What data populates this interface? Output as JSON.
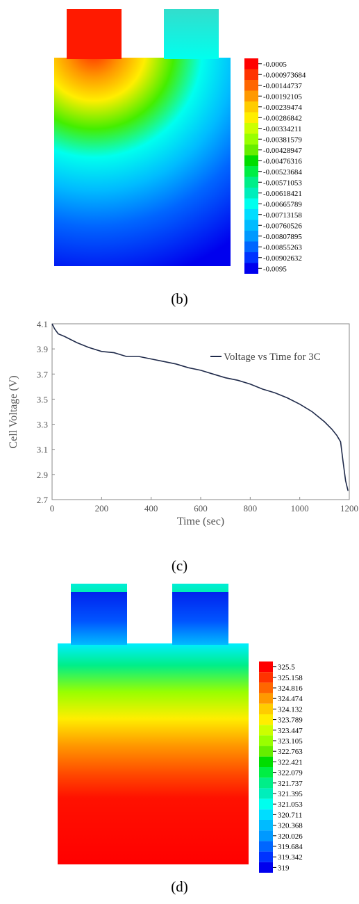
{
  "captions": {
    "b": "(b)",
    "c": "(c)",
    "d": "(d)"
  },
  "contour_b": {
    "legend_labels": [
      "-0.0005",
      "-0.000973684",
      "-0.00144737",
      "-0.00192105",
      "-0.00239474",
      "-0.00286842",
      "-0.00334211",
      "-0.00381579",
      "-0.00428947",
      "-0.00476316",
      "-0.00523684",
      "-0.00571053",
      "-0.00618421",
      "-0.00665789",
      "-0.00713158",
      "-0.00760526",
      "-0.00807895",
      "-0.00855263",
      "-0.00902632",
      "-0.0095"
    ],
    "legend_colors": [
      "#ff0000",
      "#ff3300",
      "#ff6600",
      "#ff9900",
      "#ffcc00",
      "#ffee00",
      "#ccff00",
      "#99ff00",
      "#66ee00",
      "#00dd00",
      "#00ee44",
      "#00ee88",
      "#00eebb",
      "#00ffee",
      "#00ddff",
      "#00bbff",
      "#0099ff",
      "#0066ff",
      "#0033ff",
      "#0000ee"
    ]
  },
  "contour_d": {
    "legend_labels": [
      "325.5",
      "325.158",
      "324.816",
      "324.474",
      "324.132",
      "323.789",
      "323.447",
      "323.105",
      "322.763",
      "322.421",
      "322.079",
      "321.737",
      "321.395",
      "321.053",
      "320.711",
      "320.368",
      "320.026",
      "319.684",
      "319.342",
      "319"
    ],
    "legend_colors": [
      "#ff0000",
      "#ff3300",
      "#ff6600",
      "#ff9900",
      "#ffcc00",
      "#ffee00",
      "#ccff00",
      "#99ff00",
      "#66ee00",
      "#00dd00",
      "#00ee44",
      "#00ee88",
      "#00eebb",
      "#00ffee",
      "#00ddff",
      "#00bbff",
      "#0099ff",
      "#0066ff",
      "#0033ff",
      "#0000ee"
    ]
  },
  "chart_data": {
    "type": "line",
    "title": "",
    "xlabel": "Time (sec)",
    "ylabel": "Cell Voltage (V)",
    "xlim": [
      0,
      1200
    ],
    "ylim": [
      2.7,
      4.1
    ],
    "xticks": [
      0,
      200,
      400,
      600,
      800,
      1000,
      1200
    ],
    "yticks": [
      2.7,
      2.9,
      3.1,
      3.3,
      3.5,
      3.7,
      3.9,
      4.1
    ],
    "grid": false,
    "legend_position": "top-right",
    "series": [
      {
        "name": "Voltage vs Time for 3C",
        "color": "#1f2a4a",
        "x": [
          0,
          10,
          25,
          50,
          100,
          150,
          200,
          250,
          300,
          350,
          400,
          450,
          500,
          550,
          600,
          650,
          700,
          750,
          800,
          850,
          900,
          950,
          1000,
          1050,
          1100,
          1130,
          1150,
          1165,
          1175,
          1185,
          1195
        ],
        "y": [
          4.1,
          4.06,
          4.02,
          4.0,
          3.95,
          3.91,
          3.88,
          3.87,
          3.84,
          3.84,
          3.82,
          3.8,
          3.78,
          3.75,
          3.73,
          3.7,
          3.67,
          3.65,
          3.62,
          3.58,
          3.55,
          3.51,
          3.46,
          3.4,
          3.32,
          3.26,
          3.21,
          3.16,
          3.0,
          2.85,
          2.77
        ]
      }
    ]
  }
}
